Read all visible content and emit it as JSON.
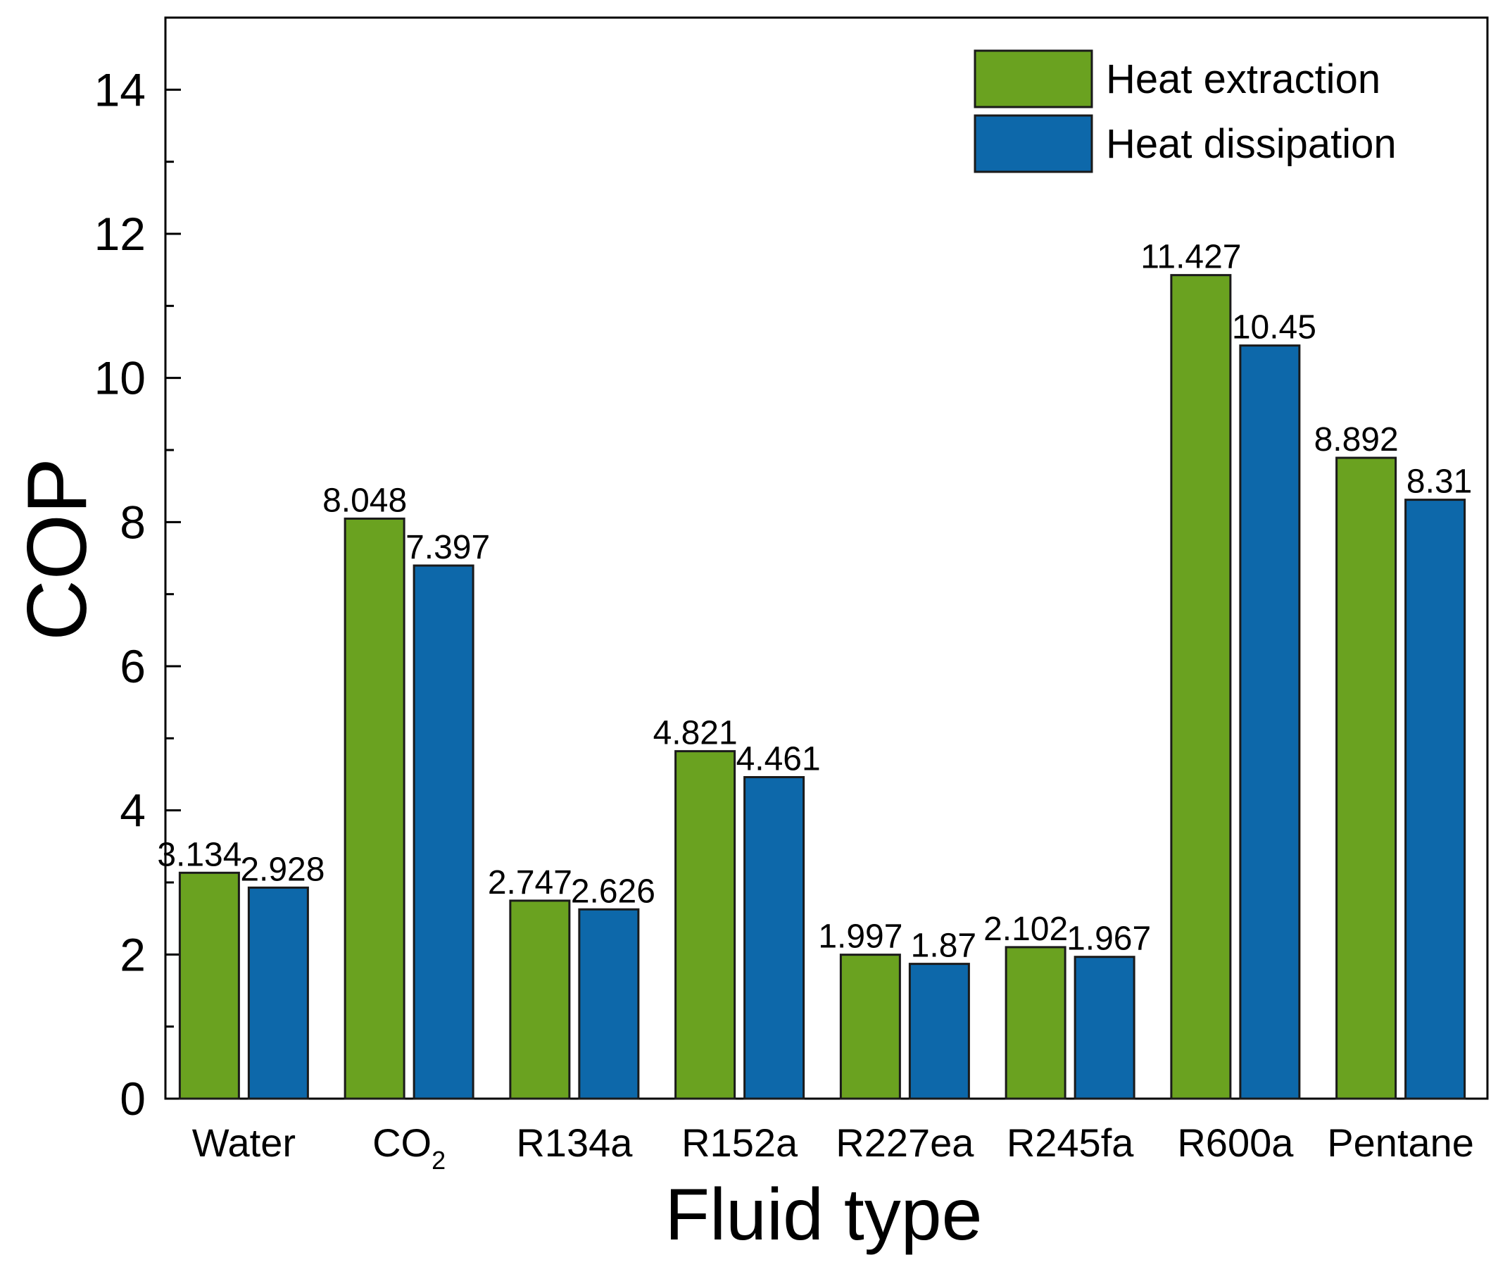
{
  "chart_data": {
    "type": "bar",
    "title": "",
    "xlabel": "Fluid type",
    "ylabel": "COP",
    "ylim": [
      0,
      15
    ],
    "yticks": [
      0,
      2,
      4,
      6,
      8,
      10,
      12,
      14
    ],
    "categories": [
      {
        "label": "Water"
      },
      {
        "label": "CO",
        "sub": "2"
      },
      {
        "label": "R134a"
      },
      {
        "label": "R152a"
      },
      {
        "label": "R227ea"
      },
      {
        "label": "R245fa"
      },
      {
        "label": "R600a"
      },
      {
        "label": "Pentane"
      }
    ],
    "series": [
      {
        "name": "Heat extraction",
        "color": "#6aa220",
        "values": [
          3.134,
          8.048,
          2.747,
          4.821,
          1.997,
          2.102,
          11.427,
          8.892
        ],
        "labels": [
          "3.134",
          "8.048",
          "2.747",
          "4.821",
          "1.997",
          "2.102",
          "11.427",
          "8.892"
        ]
      },
      {
        "name": "Heat dissipation",
        "color": "#0d68aa",
        "values": [
          2.928,
          7.397,
          2.626,
          4.461,
          1.87,
          1.967,
          10.45,
          8.31
        ],
        "labels": [
          "2.928",
          "7.397",
          "2.626",
          "4.461",
          "1.87",
          "1.967",
          "10.45",
          "8.31"
        ]
      }
    ],
    "legend": "top-right",
    "grid": false
  }
}
